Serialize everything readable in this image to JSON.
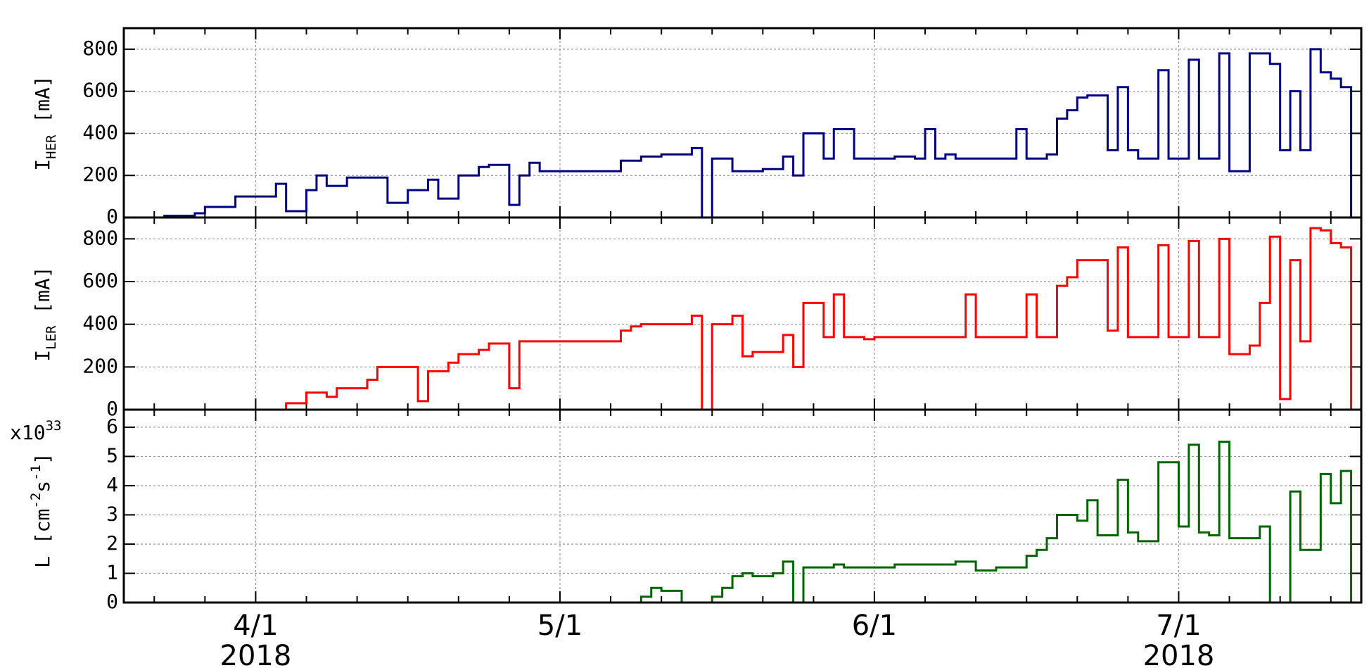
{
  "chart_data": [
    {
      "type": "line",
      "step": true,
      "grid": true,
      "ylabel": [
        "I",
        "HER",
        " [mA]"
      ],
      "ylim": [
        0,
        900
      ],
      "yticks": [
        0,
        200,
        400,
        600,
        800
      ],
      "series": [
        {
          "color": "#000080",
          "x": [
            "2018-03-21",
            "2018-03-23",
            "2018-03-26",
            "2018-03-27",
            "2018-03-30",
            "2018-04-03",
            "2018-04-04",
            "2018-04-06",
            "2018-04-07",
            "2018-04-08",
            "2018-04-10",
            "2018-04-14",
            "2018-04-16",
            "2018-04-18",
            "2018-04-19",
            "2018-04-21",
            "2018-04-23",
            "2018-04-24",
            "2018-04-26",
            "2018-04-27",
            "2018-04-28",
            "2018-04-29",
            "2018-05-07",
            "2018-05-09",
            "2018-05-11",
            "2018-05-14",
            "2018-05-15",
            "2018-05-16",
            "2018-05-18",
            "2018-05-21",
            "2018-05-23",
            "2018-05-24",
            "2018-05-25",
            "2018-05-27",
            "2018-05-28",
            "2018-05-30",
            "2018-06-03",
            "2018-06-05",
            "2018-06-06",
            "2018-06-07",
            "2018-06-08",
            "2018-06-09",
            "2018-06-15",
            "2018-06-16",
            "2018-06-18",
            "2018-06-19",
            "2018-06-20",
            "2018-06-21",
            "2018-06-22",
            "2018-06-24",
            "2018-06-25",
            "2018-06-26",
            "2018-06-27",
            "2018-06-29",
            "2018-06-30",
            "2018-07-02",
            "2018-07-03",
            "2018-07-05",
            "2018-07-06",
            "2018-07-08",
            "2018-07-10",
            "2018-07-11",
            "2018-07-12",
            "2018-07-13",
            "2018-07-14",
            "2018-07-15",
            "2018-07-16",
            "2018-07-17",
            "2018-07-18"
          ],
          "values": [
            0,
            8,
            20,
            50,
            100,
            160,
            30,
            130,
            200,
            150,
            190,
            70,
            130,
            180,
            90,
            200,
            240,
            250,
            60,
            200,
            260,
            220,
            270,
            290,
            300,
            330,
            0,
            280,
            220,
            230,
            290,
            200,
            400,
            280,
            420,
            280,
            290,
            280,
            420,
            280,
            300,
            280,
            420,
            280,
            300,
            470,
            510,
            570,
            580,
            320,
            620,
            320,
            280,
            700,
            280,
            750,
            280,
            780,
            220,
            780,
            730,
            320,
            600,
            320,
            800,
            690,
            660,
            620,
            0
          ]
        }
      ]
    },
    {
      "type": "line",
      "step": true,
      "grid": true,
      "ylabel": [
        "I",
        "LER",
        " [mA]"
      ],
      "ylim": [
        0,
        900
      ],
      "yticks": [
        0,
        200,
        400,
        600,
        800
      ],
      "series": [
        {
          "color": "#ff0000",
          "x": [
            "2018-03-19",
            "2018-04-04",
            "2018-04-06",
            "2018-04-08",
            "2018-04-09",
            "2018-04-12",
            "2018-04-13",
            "2018-04-17",
            "2018-04-18",
            "2018-04-20",
            "2018-04-21",
            "2018-04-23",
            "2018-04-24",
            "2018-04-26",
            "2018-04-27",
            "2018-05-07",
            "2018-05-08",
            "2018-05-09",
            "2018-05-14",
            "2018-05-15",
            "2018-05-16",
            "2018-05-18",
            "2018-05-19",
            "2018-05-20",
            "2018-05-23",
            "2018-05-24",
            "2018-05-25",
            "2018-05-27",
            "2018-05-28",
            "2018-05-29",
            "2018-05-31",
            "2018-06-01",
            "2018-06-10",
            "2018-06-11",
            "2018-06-16",
            "2018-06-17",
            "2018-06-19",
            "2018-06-20",
            "2018-06-21",
            "2018-06-24",
            "2018-06-25",
            "2018-06-26",
            "2018-06-29",
            "2018-06-30",
            "2018-07-02",
            "2018-07-03",
            "2018-07-05",
            "2018-07-06",
            "2018-07-08",
            "2018-07-09",
            "2018-07-10",
            "2018-07-11",
            "2018-07-12",
            "2018-07-13",
            "2018-07-14",
            "2018-07-15",
            "2018-07-16",
            "2018-07-17",
            "2018-07-18"
          ],
          "values": [
            0,
            30,
            80,
            60,
            100,
            140,
            200,
            40,
            180,
            220,
            260,
            280,
            310,
            100,
            320,
            370,
            390,
            400,
            440,
            0,
            400,
            440,
            250,
            270,
            350,
            200,
            500,
            340,
            540,
            340,
            330,
            340,
            540,
            340,
            540,
            340,
            580,
            620,
            700,
            370,
            760,
            340,
            770,
            340,
            790,
            340,
            800,
            260,
            300,
            500,
            810,
            50,
            700,
            320,
            850,
            840,
            780,
            760,
            0
          ]
        }
      ]
    },
    {
      "type": "line",
      "step": true,
      "grid": true,
      "multiplier": [
        "x10",
        "33"
      ],
      "ylabel": [
        "L [cm",
        "-2",
        "s",
        "-1",
        "]"
      ],
      "ylim": [
        0,
        6.6
      ],
      "yticks": [
        0,
        1,
        2,
        3,
        4,
        5,
        6
      ],
      "xlim": [
        "2018-03-19",
        "2018-07-19"
      ],
      "xticks": [
        {
          "value": "2018-04-01",
          "label": "4/1"
        },
        {
          "value": "2018-05-01",
          "label": "5/1"
        },
        {
          "value": "2018-06-01",
          "label": "6/1"
        },
        {
          "value": "2018-07-01",
          "label": "7/1"
        }
      ],
      "xtick_years": [
        "2018",
        null,
        null,
        "2018"
      ],
      "xminorticks": [
        "2018-03-22",
        "2018-03-27",
        "2018-04-06",
        "2018-04-11",
        "2018-04-16",
        "2018-04-21",
        "2018-04-26",
        "2018-05-06",
        "2018-05-11",
        "2018-05-16",
        "2018-05-21",
        "2018-05-26",
        "2018-06-06",
        "2018-06-11",
        "2018-06-16",
        "2018-06-21",
        "2018-06-26",
        "2018-07-06",
        "2018-07-11",
        "2018-07-16"
      ],
      "series": [
        {
          "color": "#006400",
          "x": [
            "2018-05-07",
            "2018-05-09",
            "2018-05-10",
            "2018-05-11",
            "2018-05-13",
            "2018-05-16",
            "2018-05-17",
            "2018-05-18",
            "2018-05-19",
            "2018-05-20",
            "2018-05-22",
            "2018-05-23",
            "2018-05-24",
            "2018-05-25",
            "2018-05-28",
            "2018-05-29",
            "2018-06-03",
            "2018-06-09",
            "2018-06-11",
            "2018-06-13",
            "2018-06-16",
            "2018-06-17",
            "2018-06-18",
            "2018-06-19",
            "2018-06-21",
            "2018-06-22",
            "2018-06-23",
            "2018-06-25",
            "2018-06-26",
            "2018-06-27",
            "2018-06-29",
            "2018-07-01",
            "2018-07-02",
            "2018-07-03",
            "2018-07-04",
            "2018-07-05",
            "2018-07-06",
            "2018-07-09",
            "2018-07-10",
            "2018-07-12",
            "2018-07-13",
            "2018-07-15",
            "2018-07-16",
            "2018-07-17",
            "2018-07-18"
          ],
          "values": [
            0,
            0.2,
            0.5,
            0.4,
            0,
            0.2,
            0.5,
            0.9,
            1.0,
            0.9,
            1.0,
            1.4,
            0,
            1.2,
            1.3,
            1.2,
            1.3,
            1.4,
            1.1,
            1.2,
            1.6,
            1.8,
            2.2,
            3.0,
            2.8,
            3.5,
            2.3,
            4.2,
            2.4,
            2.1,
            4.8,
            2.6,
            5.4,
            2.4,
            2.3,
            5.5,
            2.2,
            2.6,
            0,
            3.8,
            1.8,
            4.4,
            3.4,
            4.5,
            0
          ]
        }
      ]
    }
  ]
}
